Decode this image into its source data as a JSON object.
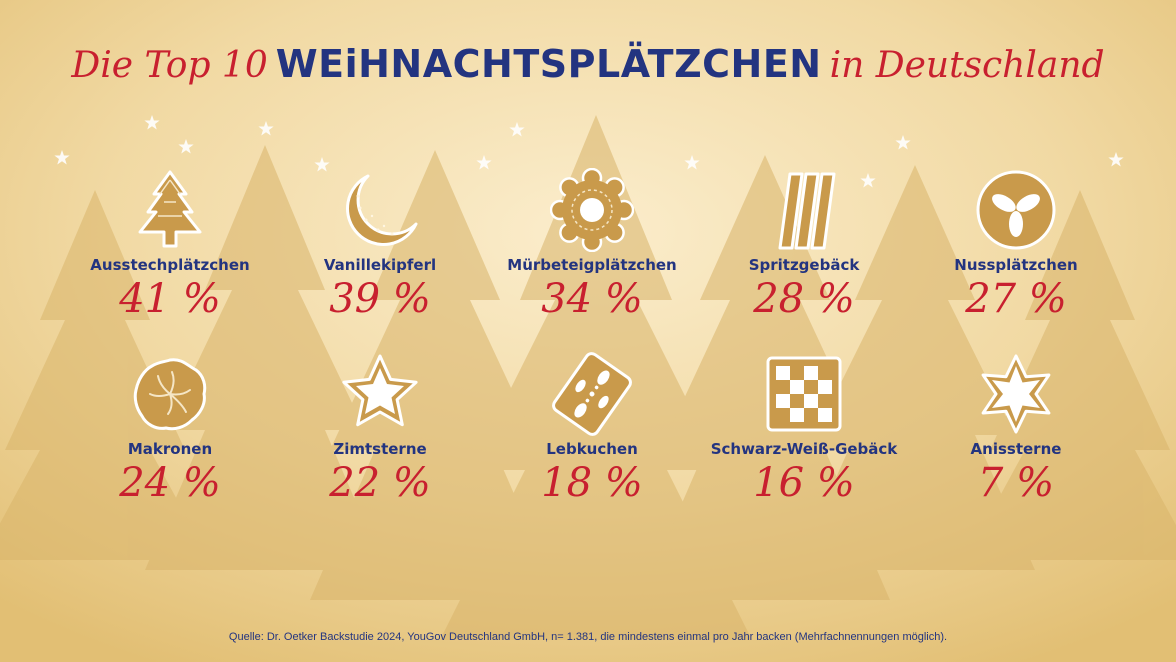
{
  "title": {
    "prefix": "Die Top 10",
    "highlight": "WEiHNACHTSPLÄTZCHEN",
    "suffix": "in Deutschland"
  },
  "chart_data": {
    "type": "table",
    "unit": "%",
    "title": "Die Top 10 WEiHNACHTSPLÄTZCHEN in Deutschland",
    "categories": [
      "Ausstechplätzchen",
      "Vanillekipferl",
      "Mürbeteigplätzchen",
      "Spritzgebäck",
      "Nussplätzchen",
      "Makronen",
      "Zimtsterne",
      "Lebkuchen",
      "Schwarz-Weiß-Gebäck",
      "Anissterne"
    ],
    "values": [
      41,
      39,
      34,
      28,
      27,
      24,
      22,
      18,
      16,
      7
    ]
  },
  "items": [
    {
      "label": "Ausstechplätzchen",
      "pct": "41 %",
      "icon": "tree-cookie-icon"
    },
    {
      "label": "Vanillekipferl",
      "pct": "39 %",
      "icon": "crescent-cookie-icon"
    },
    {
      "label": "Mürbeteigplätzchen",
      "pct": "34 %",
      "icon": "flower-cookie-icon"
    },
    {
      "label": "Spritzgebäck",
      "pct": "28 %",
      "icon": "piped-cookie-icon"
    },
    {
      "label": "Nussplätzchen",
      "pct": "27 %",
      "icon": "nut-cookie-icon"
    },
    {
      "label": "Makronen",
      "pct": "24 %",
      "icon": "macaroon-icon"
    },
    {
      "label": "Zimtsterne",
      "pct": "22 %",
      "icon": "star-cookie-icon"
    },
    {
      "label": "Lebkuchen",
      "pct": "18 %",
      "icon": "gingerbread-icon"
    },
    {
      "label": "Schwarz-Weiß-Gebäck",
      "pct": "16 %",
      "icon": "checkered-cookie-icon"
    },
    {
      "label": "Anissterne",
      "pct": "7 %",
      "icon": "anise-star-icon"
    }
  ],
  "source": "Quelle: Dr. Oetker Backstudie 2024, YouGov Deutschland GmbH, n= 1.381, die mindestens einmal pro Jahr backen (Mehrfachnennungen möglich).",
  "colors": {
    "title_red": "#c8202f",
    "title_blue": "#233480",
    "cookie": "#c99a4b",
    "background": "#f3dca8"
  }
}
